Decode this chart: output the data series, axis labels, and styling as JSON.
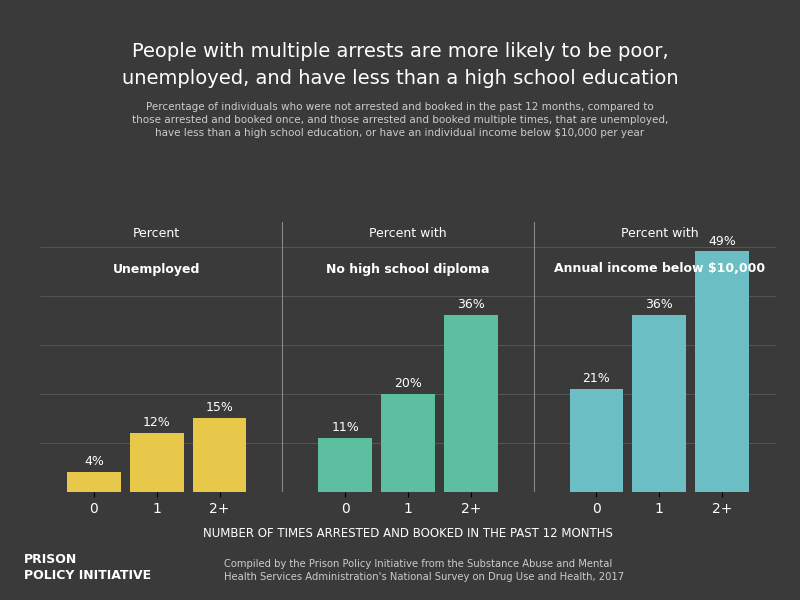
{
  "title_line1": "People with multiple arrests are more likely to be poor,",
  "title_line2": "unemployed, and have less than a high school education",
  "subtitle": "Percentage of individuals who were not arrested and booked in the past 12 months, compared to\nthose arrested and booked once, and those arrested and booked multiple times, that are unemployed,\nhave less than a high school education, or have an individual income below $10,000 per year",
  "background_color": "#3a3a3a",
  "text_color": "#ffffff",
  "group_labels_top": [
    "Percent\nUnemployed",
    "Percent with\nNo high school diploma",
    "Percent with\nAnnual income below $10,000"
  ],
  "group_labels_bold": [
    "Unemployed",
    "No high school diploma",
    "Annual income below $10,000"
  ],
  "categories": [
    "0",
    "1",
    "2+",
    "0",
    "1",
    "2+",
    "0",
    "1",
    "2+"
  ],
  "values": [
    4,
    12,
    15,
    11,
    20,
    36,
    21,
    36,
    49
  ],
  "bar_colors": [
    "#e8c84a",
    "#e8c84a",
    "#e8c84a",
    "#5cbfa0",
    "#5cbfa0",
    "#5cbfa0",
    "#6bbfc4",
    "#6bbfc4",
    "#6bbfc4"
  ],
  "xlabel": "Number of times arrested and booked in the past 12 months",
  "footer_left": "PRISON\nPOLICY INITIATIVE",
  "footer_right": "Compiled by the Prison Policy Initiative from the Substance Abuse and Mental\nHealth Services Administration's National Survey on Drug Use and Health, 2017",
  "ylim": [
    0,
    55
  ],
  "grid_color": "#555555",
  "separator_color": "#888888"
}
